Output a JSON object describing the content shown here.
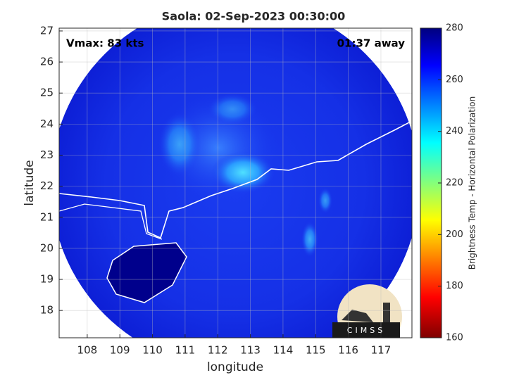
{
  "chart_data": {
    "type": "map",
    "title": "Saola: 02-Sep-2023 00:30:00",
    "annotations": {
      "left": "Vmax: 83 kts",
      "right": "01:37 away"
    },
    "x_label": "longitude",
    "y_label": "latitude",
    "xlim": [
      107.14,
      117.95
    ],
    "ylim": [
      17.12,
      27.09
    ],
    "xticks": [
      108,
      109,
      110,
      111,
      112,
      113,
      114,
      115,
      116,
      117
    ],
    "yticks": [
      18,
      19,
      20,
      21,
      22,
      23,
      24,
      25,
      26,
      27
    ],
    "grid": true,
    "colorbar": {
      "label": "Brightness Temp - Horizontal Polarization",
      "clim": [
        160,
        280
      ],
      "ticks": [
        160,
        180,
        200,
        220,
        240,
        260,
        280
      ]
    },
    "logo_text": "CIMSS"
  }
}
